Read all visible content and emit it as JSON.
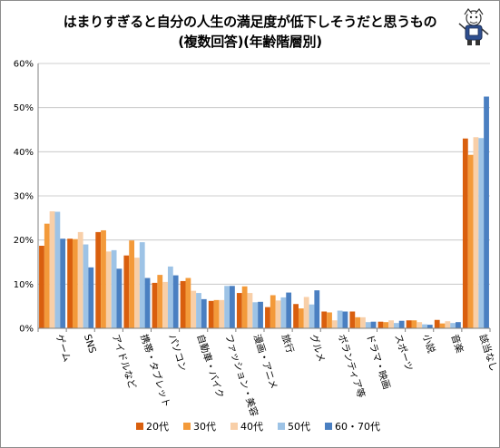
{
  "title_line1": "はまりすぎると自分の人生の満足度が低下しそうだと思うもの",
  "title_line2": "(複数回答)(年齢階層別)",
  "chart_data": {
    "type": "bar",
    "ylim": [
      0,
      60
    ],
    "yticks": [
      "0%",
      "10%",
      "20%",
      "30%",
      "40%",
      "50%",
      "60%"
    ],
    "grid": true,
    "legend_position": "bottom",
    "categories": [
      "ゲーム",
      "SNS",
      "アイドルなど",
      "携帯・タブレット",
      "パソコン",
      "自動車・バイク",
      "ファッション・美容",
      "漫画・アニメ",
      "旅行",
      "グルメ",
      "ボランティア等",
      "ドラマ・映画",
      "スポーツ",
      "小説",
      "音楽",
      "該当なし"
    ],
    "series": [
      {
        "name": "20代",
        "color": "#d95f0e",
        "values": [
          18.7,
          20.3,
          21.8,
          16.5,
          10.3,
          10.7,
          6.2,
          8.0,
          4.8,
          5.5,
          3.8,
          3.8,
          1.5,
          1.8,
          1.9,
          43.0
        ]
      },
      {
        "name": "30代",
        "color": "#f39a3a",
        "values": [
          23.7,
          20.2,
          22.2,
          19.9,
          12.1,
          11.4,
          6.4,
          9.5,
          7.5,
          4.5,
          3.6,
          2.5,
          1.4,
          1.8,
          1.1,
          39.3
        ]
      },
      {
        "name": "40代",
        "color": "#f8cfa8",
        "values": [
          26.5,
          21.8,
          17.4,
          16.0,
          10.5,
          8.5,
          6.4,
          8.0,
          6.3,
          7.1,
          1.8,
          2.5,
          1.8,
          1.4,
          1.6,
          43.3
        ]
      },
      {
        "name": "50代",
        "color": "#9dc3e6",
        "values": [
          26.4,
          19.0,
          17.7,
          19.5,
          14.0,
          8.0,
          9.6,
          5.9,
          7.0,
          5.4,
          4.0,
          1.4,
          1.2,
          0.9,
          1.2,
          43.1
        ]
      },
      {
        "name": "60・70代",
        "color": "#4a7fc1",
        "values": [
          20.3,
          13.8,
          13.5,
          11.4,
          12.0,
          6.6,
          9.6,
          6.0,
          8.1,
          8.6,
          3.8,
          1.5,
          1.7,
          0.8,
          1.4,
          52.5
        ]
      }
    ]
  }
}
